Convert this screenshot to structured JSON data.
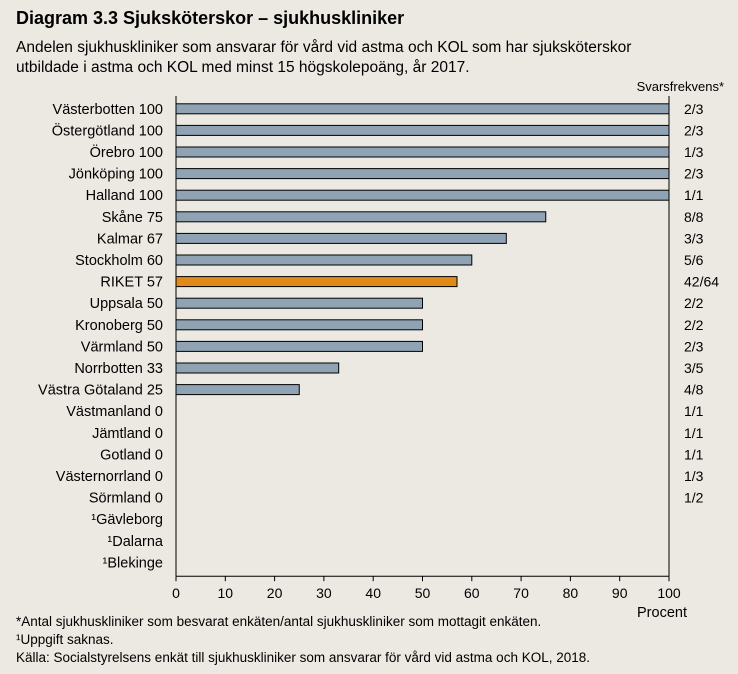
{
  "header": {
    "title": "Diagram 3.3 Sjuksköterskor – sjukhuskliniker",
    "subtitle_line1": "Andelen sjukhuskliniker som ansvarar för vård vid astma och KOL som har sjuksköterskor",
    "subtitle_line2": "utbildade i astma och KOL med minst 15 högskolepoäng, år 2017."
  },
  "chart_data": {
    "type": "bar",
    "orientation": "horizontal",
    "categories": [
      "Västerbotten",
      "Östergötland",
      "Örebro",
      "Jönköping",
      "Halland",
      "Skåne",
      "Kalmar",
      "Stockholm",
      "RIKET",
      "Uppsala",
      "Kronoberg",
      "Värmland",
      "Norrbotten",
      "Västra Götaland",
      "Västmanland",
      "Jämtland",
      "Gotland",
      "Västernorrland",
      "Sörmland",
      "¹Gävleborg",
      "¹Dalarna",
      "¹Blekinge"
    ],
    "values": [
      100,
      100,
      100,
      100,
      100,
      75,
      67,
      60,
      57,
      50,
      50,
      50,
      33,
      25,
      0,
      0,
      0,
      0,
      0,
      null,
      null,
      null
    ],
    "value_labels": [
      "100",
      "100",
      "100",
      "100",
      "100",
      "75",
      "67",
      "60",
      "57",
      "50",
      "50",
      "50",
      "33",
      "25",
      "0",
      "0",
      "0",
      "0",
      "0",
      "",
      "",
      ""
    ],
    "response_rates": [
      "2/3",
      "2/3",
      "1/3",
      "2/3",
      "1/1",
      "8/8",
      "3/3",
      "5/6",
      "42/64",
      "2/2",
      "2/2",
      "2/3",
      "3/5",
      "4/8",
      "1/1",
      "1/1",
      "1/1",
      "1/3",
      "1/2",
      "",
      "",
      ""
    ],
    "highlight_category": "RIKET",
    "xlim": [
      0,
      100
    ],
    "xticks": [
      "0",
      "10",
      "20",
      "30",
      "40",
      "50",
      "60",
      "70",
      "80",
      "90",
      "100"
    ],
    "xlabel": "Procent",
    "right_column_title": "Svarsfrekvens*",
    "colors": {
      "bar": "#8fa3b4",
      "highlight": "#e08a1a",
      "bar_stroke": "#000000",
      "background": "#ece9e2"
    }
  },
  "footnotes": {
    "note1": "*Antal sjukhuskliniker som besvarat enkäten/antal sjukhuskliniker som mottagit enkäten.",
    "note2": "¹Uppgift saknas.",
    "source": "Källa:  Socialstyrelsens enkät till sjukhuskliniker som ansvarar för vård vid astma och KOL, 2018."
  }
}
